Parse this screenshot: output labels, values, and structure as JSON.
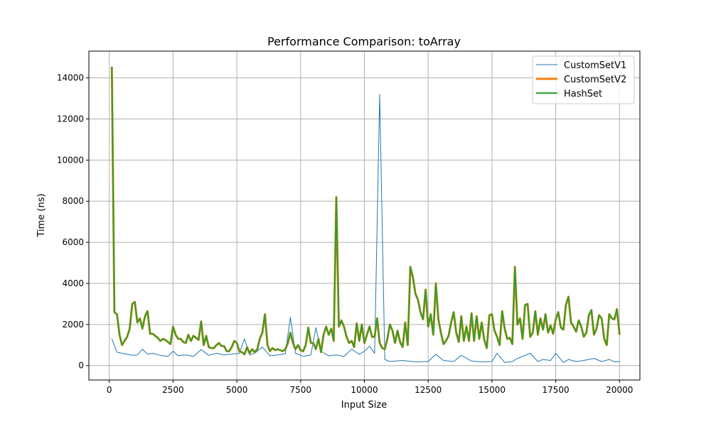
{
  "chart_data": {
    "type": "line",
    "title": "Performance Comparison: toArray",
    "xlabel": "Input Size",
    "ylabel": "Time (ns)",
    "xlim": [
      -800,
      20800
    ],
    "ylim": [
      -700,
      15300
    ],
    "grid": true,
    "legend_position": "top-right",
    "x_ticks": [
      0,
      2500,
      5000,
      7500,
      10000,
      12500,
      15000,
      17500,
      20000
    ],
    "x_tick_labels": [
      "0",
      "2500",
      "5000",
      "7500",
      "10000",
      "12500",
      "15000",
      "17500",
      "20000"
    ],
    "y_ticks": [
      0,
      2000,
      4000,
      6000,
      8000,
      10000,
      12000,
      14000
    ],
    "y_tick_labels": [
      "0",
      "2000",
      "4000",
      "6000",
      "8000",
      "10000",
      "12000",
      "14000"
    ],
    "series": [
      {
        "name": "CustomSetV1",
        "color": "#1f77b4",
        "line_width": 1,
        "x": [
          100,
          300,
          500,
          700,
          900,
          1100,
          1300,
          1500,
          1700,
          2000,
          2300,
          2500,
          2700,
          3000,
          3300,
          3600,
          3900,
          4200,
          4500,
          4800,
          5100,
          5300,
          5500,
          5700,
          6000,
          6300,
          6600,
          6900,
          7100,
          7300,
          7600,
          7900,
          8100,
          8300,
          8600,
          8900,
          9200,
          9500,
          9800,
          10000,
          10200,
          10400,
          10600,
          10800,
          11000,
          11500,
          12000,
          12500,
          12800,
          13100,
          13500,
          13800,
          14200,
          14600,
          15000,
          15200,
          15500,
          15800,
          16000,
          16200,
          16500,
          16800,
          17000,
          17300,
          17500,
          17800,
          18000,
          18300,
          18600,
          19000,
          19300,
          19600,
          19800,
          20000
        ],
        "values": [
          1300,
          650,
          600,
          550,
          500,
          520,
          800,
          550,
          600,
          500,
          450,
          700,
          480,
          520,
          450,
          780,
          500,
          600,
          520,
          560,
          600,
          1300,
          520,
          600,
          900,
          480,
          520,
          580,
          2350,
          600,
          450,
          520,
          1850,
          700,
          480,
          520,
          450,
          800,
          550,
          700,
          950,
          600,
          13200,
          300,
          200,
          250,
          180,
          200,
          550,
          250,
          200,
          500,
          220,
          180,
          200,
          600,
          150,
          200,
          350,
          450,
          600,
          200,
          300,
          250,
          600,
          150,
          300,
          200,
          250,
          350,
          200,
          300,
          180,
          200
        ]
      },
      {
        "name": "CustomSetV2",
        "color": "#ff7f0e",
        "line_width": 3,
        "x": [
          100,
          200,
          300,
          400,
          500,
          600,
          700,
          800,
          900,
          1000,
          1100,
          1200,
          1300,
          1400,
          1500,
          1600,
          1700,
          1800,
          1900,
          2000,
          2100,
          2200,
          2300,
          2400,
          2500,
          2600,
          2700,
          2800,
          2900,
          3000,
          3100,
          3200,
          3300,
          3400,
          3500,
          3600,
          3700,
          3800,
          3900,
          4000,
          4100,
          4200,
          4300,
          4400,
          4500,
          4600,
          4700,
          4800,
          4900,
          5000,
          5100,
          5200,
          5300,
          5400,
          5500,
          5600,
          5700,
          5800,
          5900,
          6000,
          6100,
          6200,
          6300,
          6400,
          6500,
          6600,
          6700,
          6800,
          6900,
          7000,
          7100,
          7200,
          7300,
          7400,
          7500,
          7600,
          7700,
          7800,
          7900,
          8000,
          8100,
          8200,
          8300,
          8400,
          8500,
          8600,
          8700,
          8800,
          8900,
          9000,
          9100,
          9200,
          9300,
          9400,
          9500,
          9600,
          9700,
          9800,
          9900,
          10000,
          10100,
          10200,
          10300,
          10400,
          10500,
          10600,
          10700,
          10800,
          10900,
          11000,
          11100,
          11200,
          11300,
          11400,
          11500,
          11600,
          11700,
          11800,
          11900,
          12000,
          12100,
          12200,
          12300,
          12400,
          12500,
          12600,
          12700,
          12800,
          12900,
          13000,
          13100,
          13200,
          13300,
          13400,
          13500,
          13600,
          13700,
          13800,
          13900,
          14000,
          14100,
          14200,
          14300,
          14400,
          14500,
          14600,
          14700,
          14800,
          14900,
          15000,
          15100,
          15200,
          15300,
          15400,
          15500,
          15600,
          15700,
          15800,
          15900,
          16000,
          16100,
          16200,
          16300,
          16400,
          16500,
          16600,
          16700,
          16800,
          16900,
          17000,
          17100,
          17200,
          17300,
          17400,
          17500,
          17600,
          17700,
          17800,
          17900,
          18000,
          18100,
          18200,
          18300,
          18400,
          18500,
          18600,
          18700,
          18800,
          18900,
          19000,
          19100,
          19200,
          19300,
          19400,
          19500,
          19600,
          19700,
          19800,
          19900,
          20000
        ],
        "values": [
          14500,
          2600,
          2500,
          1500,
          1000,
          1200,
          1400,
          1800,
          3000,
          3100,
          2100,
          2300,
          1800,
          2400,
          2650,
          1550,
          1550,
          1450,
          1350,
          1200,
          1300,
          1250,
          1150,
          1050,
          1900,
          1500,
          1300,
          1300,
          1150,
          1100,
          1500,
          1200,
          1450,
          1350,
          1250,
          2150,
          1000,
          1450,
          900,
          850,
          850,
          1000,
          1100,
          950,
          950,
          700,
          700,
          900,
          1200,
          1100,
          700,
          650,
          550,
          900,
          600,
          800,
          650,
          800,
          1300,
          1600,
          2500,
          1000,
          700,
          850,
          750,
          800,
          750,
          700,
          800,
          1100,
          1600,
          1100,
          800,
          1000,
          750,
          700,
          1000,
          1850,
          1100,
          1100,
          800,
          1300,
          650,
          1500,
          1900,
          1500,
          1800,
          1200,
          8200,
          1900,
          2200,
          1900,
          1400,
          1100,
          1200,
          900,
          2050,
          1200,
          2000,
          1100,
          1500,
          1900,
          1400,
          1400,
          2300,
          1100,
          850,
          800,
          1300,
          2000,
          1700,
          1100,
          1700,
          1150,
          900,
          2100,
          1000,
          4800,
          4300,
          3500,
          3200,
          2600,
          2250,
          3700,
          1900,
          2500,
          1500,
          4000,
          2250,
          1600,
          1050,
          1200,
          1450,
          2100,
          2600,
          1600,
          1150,
          2400,
          1200,
          1900,
          1200,
          2550,
          1200,
          2400,
          1300,
          2100,
          1250,
          850,
          2450,
          2500,
          1700,
          1400,
          1000,
          2650,
          1800,
          1300,
          1350,
          1050,
          4800,
          2000,
          2300,
          1300,
          2950,
          3000,
          1400,
          1600,
          2650,
          1500,
          2300,
          1750,
          2500,
          1600,
          1950,
          1550,
          2250,
          2600,
          1850,
          1750,
          2950,
          3350,
          2100,
          1900,
          1650,
          2200,
          1900,
          1400,
          1600,
          2450,
          2700,
          1500,
          1800,
          2450,
          2300,
          1300,
          1000,
          2500,
          2300,
          2250,
          2750,
          1550
        ]
      },
      {
        "name": "HashSet",
        "color": "#2ca02c",
        "line_width": 2,
        "same_as": "CustomSetV2"
      }
    ]
  }
}
